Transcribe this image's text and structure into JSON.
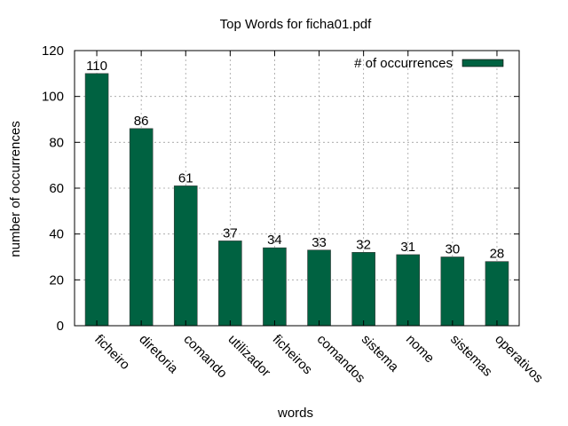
{
  "chart_data": {
    "type": "bar",
    "title": "Top Words for ficha01.pdf",
    "xlabel": "words",
    "ylabel": "number of occurrences",
    "categories": [
      "ficheiro",
      "diretoria",
      "comando",
      "utilizador",
      "ficheiros",
      "comandos",
      "sistema",
      "nome",
      "sistemas",
      "operativos"
    ],
    "series": [
      {
        "name": "# of occurrences",
        "values": [
          110,
          86,
          61,
          37,
          34,
          33,
          32,
          31,
          30,
          28
        ]
      }
    ],
    "ylim": [
      0,
      120
    ],
    "yticks": [
      0,
      20,
      40,
      60,
      80,
      100,
      120
    ],
    "grid": true,
    "legend_position": "top-right",
    "bar_color": "#006241"
  }
}
